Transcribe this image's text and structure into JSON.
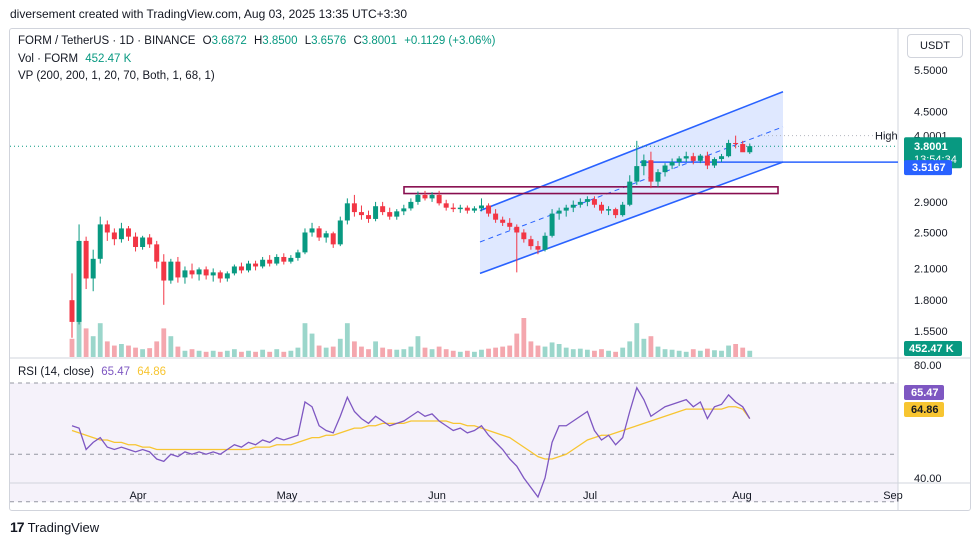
{
  "caption": "diversement created with TradingView.com, Aug 03, 2025 13:35 UTC+3:30",
  "legend": {
    "symbol": "FORM / TetherUS · 1D · BINANCE",
    "o_label": "O",
    "o": "3.6872",
    "h_label": "H",
    "h": "3.8500",
    "l_label": "L",
    "l": "3.6576",
    "c_label": "C",
    "c": "3.8001",
    "change": "+0.1129 (+3.06%)",
    "vol_label": "Vol · FORM",
    "vol_value": "452.47 K",
    "vp": "VP (200, 200, 1, 20, 70, Both, 1, 68, 1)",
    "rsi_label": "RSI (14, close)",
    "rsi_value": "65.47",
    "rsi_ma_value": "64.86"
  },
  "currency": "USDT",
  "footer": {
    "logo_mark": "17",
    "logo_text": "TradingView"
  },
  "colors": {
    "up": "#089981",
    "down": "#f23645",
    "vol_up": "#9bd6cb",
    "vol_down": "#f4a7ae",
    "channel": "#2962ff",
    "rsi": "#7e57c2",
    "rsi_ma": "#f7c531",
    "zone": "#880e4f"
  },
  "chart_data": {
    "type": "candlestick",
    "price_axis": {
      "ticks": [
        "5.5000",
        "4.5000",
        "4.0001",
        "3.8001",
        "3.5167",
        "2.9000",
        "2.5000",
        "2.1000",
        "1.8000",
        "1.5500"
      ],
      "scale": "log"
    },
    "price_labels": {
      "high_label": "High",
      "high": "4.0001",
      "last": "3.8001",
      "countdown": "13:54:34",
      "level": "3.5167",
      "volume": "452.47 K"
    },
    "x_labels": [
      "Apr",
      "May",
      "Jun",
      "Jul",
      "Aug",
      "Sep"
    ],
    "rsi_axis": [
      "80.00",
      "40.00"
    ],
    "rsi_labels": {
      "rsi": "65.47",
      "ma": "64.86"
    },
    "candles": [
      [
        1.8,
        2.05,
        1.5,
        1.62
      ],
      [
        1.62,
        2.6,
        1.6,
        2.4
      ],
      [
        2.4,
        2.45,
        1.9,
        2.0
      ],
      [
        2.0,
        2.3,
        1.88,
        2.2
      ],
      [
        2.2,
        2.7,
        2.15,
        2.6
      ],
      [
        2.6,
        2.65,
        2.4,
        2.5
      ],
      [
        2.5,
        2.55,
        2.35,
        2.42
      ],
      [
        2.42,
        2.62,
        2.38,
        2.55
      ],
      [
        2.55,
        2.58,
        2.4,
        2.45
      ],
      [
        2.45,
        2.5,
        2.28,
        2.33
      ],
      [
        2.33,
        2.46,
        2.3,
        2.44
      ],
      [
        2.44,
        2.48,
        2.32,
        2.36
      ],
      [
        2.36,
        2.4,
        2.1,
        2.17
      ],
      [
        2.17,
        2.25,
        1.76,
        1.98
      ],
      [
        1.98,
        2.2,
        1.95,
        2.17
      ],
      [
        2.17,
        2.22,
        1.96,
        2.01
      ],
      [
        2.01,
        2.12,
        1.95,
        2.08
      ],
      [
        2.08,
        2.15,
        2.0,
        2.04
      ],
      [
        2.04,
        2.11,
        1.98,
        2.09
      ],
      [
        2.09,
        2.12,
        1.99,
        2.03
      ],
      [
        2.03,
        2.1,
        1.97,
        2.06
      ],
      [
        2.06,
        2.08,
        1.96,
        2.0
      ],
      [
        2.0,
        2.07,
        1.97,
        2.05
      ],
      [
        2.05,
        2.14,
        2.03,
        2.12
      ],
      [
        2.12,
        2.16,
        2.05,
        2.08
      ],
      [
        2.08,
        2.18,
        2.06,
        2.15
      ],
      [
        2.15,
        2.18,
        2.08,
        2.12
      ],
      [
        2.12,
        2.22,
        2.1,
        2.19
      ],
      [
        2.19,
        2.24,
        2.12,
        2.15
      ],
      [
        2.15,
        2.25,
        2.13,
        2.22
      ],
      [
        2.22,
        2.26,
        2.14,
        2.17
      ],
      [
        2.17,
        2.24,
        2.15,
        2.21
      ],
      [
        2.21,
        2.3,
        2.18,
        2.27
      ],
      [
        2.27,
        2.55,
        2.25,
        2.5
      ],
      [
        2.5,
        2.62,
        2.45,
        2.55
      ],
      [
        2.55,
        2.58,
        2.4,
        2.44
      ],
      [
        2.44,
        2.52,
        2.38,
        2.49
      ],
      [
        2.49,
        2.51,
        2.32,
        2.36
      ],
      [
        2.36,
        2.7,
        2.34,
        2.65
      ],
      [
        2.65,
        2.95,
        2.6,
        2.88
      ],
      [
        2.88,
        3.0,
        2.7,
        2.76
      ],
      [
        2.76,
        2.85,
        2.66,
        2.72
      ],
      [
        2.72,
        2.78,
        2.62,
        2.67
      ],
      [
        2.67,
        2.9,
        2.64,
        2.84
      ],
      [
        2.84,
        2.9,
        2.72,
        2.76
      ],
      [
        2.76,
        2.82,
        2.66,
        2.7
      ],
      [
        2.7,
        2.8,
        2.66,
        2.77
      ],
      [
        2.77,
        2.86,
        2.72,
        2.81
      ],
      [
        2.81,
        2.95,
        2.78,
        2.9
      ],
      [
        2.9,
        3.05,
        2.86,
        3.0
      ],
      [
        3.0,
        3.06,
        2.92,
        2.95
      ],
      [
        2.95,
        3.04,
        2.9,
        3.0
      ],
      [
        3.0,
        3.06,
        2.85,
        2.88
      ],
      [
        2.88,
        2.93,
        2.78,
        2.82
      ],
      [
        2.82,
        2.88,
        2.76,
        2.8
      ],
      [
        2.8,
        2.86,
        2.75,
        2.82
      ],
      [
        2.82,
        2.85,
        2.74,
        2.78
      ],
      [
        2.78,
        2.84,
        2.75,
        2.81
      ],
      [
        2.81,
        2.95,
        2.77,
        2.85
      ],
      [
        2.85,
        2.88,
        2.7,
        2.74
      ],
      [
        2.74,
        2.8,
        2.62,
        2.66
      ],
      [
        2.66,
        2.7,
        2.58,
        2.62
      ],
      [
        2.62,
        2.68,
        2.53,
        2.57
      ],
      [
        2.57,
        2.6,
        2.06,
        2.5
      ],
      [
        2.5,
        2.54,
        2.38,
        2.42
      ],
      [
        2.42,
        2.46,
        2.3,
        2.34
      ],
      [
        2.34,
        2.4,
        2.25,
        2.3
      ],
      [
        2.3,
        2.5,
        2.28,
        2.46
      ],
      [
        2.46,
        2.8,
        2.44,
        2.74
      ],
      [
        2.74,
        2.82,
        2.66,
        2.78
      ],
      [
        2.78,
        2.86,
        2.7,
        2.82
      ],
      [
        2.82,
        2.92,
        2.76,
        2.86
      ],
      [
        2.86,
        2.95,
        2.82,
        2.9
      ],
      [
        2.9,
        2.98,
        2.84,
        2.94
      ],
      [
        2.94,
        2.98,
        2.82,
        2.86
      ],
      [
        2.86,
        2.9,
        2.74,
        2.78
      ],
      [
        2.78,
        2.84,
        2.72,
        2.8
      ],
      [
        2.8,
        2.82,
        2.68,
        2.72
      ],
      [
        2.72,
        2.9,
        2.7,
        2.86
      ],
      [
        2.86,
        3.3,
        2.84,
        3.2
      ],
      [
        3.2,
        3.9,
        3.15,
        3.45
      ],
      [
        3.45,
        3.65,
        3.3,
        3.55
      ],
      [
        3.55,
        3.7,
        3.1,
        3.2
      ],
      [
        3.2,
        3.4,
        3.12,
        3.35
      ],
      [
        3.35,
        3.5,
        3.28,
        3.46
      ],
      [
        3.46,
        3.58,
        3.4,
        3.52
      ],
      [
        3.52,
        3.62,
        3.45,
        3.58
      ],
      [
        3.58,
        3.7,
        3.52,
        3.62
      ],
      [
        3.62,
        3.68,
        3.48,
        3.54
      ],
      [
        3.54,
        3.66,
        3.5,
        3.63
      ],
      [
        3.63,
        3.7,
        3.4,
        3.46
      ],
      [
        3.46,
        3.6,
        3.42,
        3.57
      ],
      [
        3.57,
        3.66,
        3.52,
        3.62
      ],
      [
        3.62,
        3.92,
        3.6,
        3.86
      ],
      [
        3.86,
        4.0,
        3.76,
        3.84
      ],
      [
        3.84,
        3.9,
        3.7,
        3.69
      ],
      [
        3.69,
        3.85,
        3.66,
        3.8
      ]
    ],
    "volumes": [
      0.35,
      0.95,
      0.55,
      0.4,
      0.65,
      0.3,
      0.22,
      0.25,
      0.22,
      0.18,
      0.15,
      0.17,
      0.3,
      0.55,
      0.4,
      0.2,
      0.12,
      0.15,
      0.12,
      0.1,
      0.12,
      0.1,
      0.12,
      0.15,
      0.1,
      0.12,
      0.1,
      0.14,
      0.1,
      0.15,
      0.1,
      0.12,
      0.18,
      0.65,
      0.45,
      0.22,
      0.18,
      0.2,
      0.35,
      0.65,
      0.3,
      0.2,
      0.15,
      0.3,
      0.18,
      0.15,
      0.14,
      0.15,
      0.2,
      0.4,
      0.18,
      0.15,
      0.2,
      0.15,
      0.12,
      0.1,
      0.12,
      0.1,
      0.14,
      0.16,
      0.18,
      0.2,
      0.22,
      0.45,
      0.75,
      0.3,
      0.22,
      0.2,
      0.28,
      0.25,
      0.18,
      0.15,
      0.16,
      0.14,
      0.12,
      0.15,
      0.12,
      0.1,
      0.18,
      0.3,
      0.65,
      0.35,
      0.4,
      0.2,
      0.15,
      0.14,
      0.12,
      0.1,
      0.15,
      0.12,
      0.16,
      0.13,
      0.12,
      0.22,
      0.25,
      0.18,
      0.12
    ],
    "rsi": [
      62,
      61,
      52,
      55,
      57,
      53,
      52,
      53,
      52,
      51,
      52,
      51,
      48,
      47,
      50,
      49,
      51,
      50,
      51,
      50,
      51,
      50,
      52,
      54,
      53,
      55,
      54,
      56,
      55,
      57,
      56,
      57,
      58,
      72,
      70,
      62,
      60,
      59,
      66,
      74,
      68,
      65,
      63,
      66,
      64,
      62,
      63,
      64,
      66,
      68,
      66,
      67,
      64,
      62,
      60,
      61,
      59,
      60,
      62,
      58,
      55,
      52,
      48,
      45,
      40,
      36,
      32,
      40,
      55,
      62,
      62,
      64,
      66,
      68,
      60,
      56,
      58,
      54,
      57,
      68,
      78,
      73,
      66,
      68,
      70,
      71,
      72,
      73,
      70,
      72,
      65,
      70,
      71,
      75,
      72,
      70,
      65
    ],
    "rsi_ma": [
      60,
      59,
      58,
      57,
      56,
      56,
      55,
      55,
      54,
      54,
      53,
      53,
      52,
      52,
      52,
      52,
      52,
      52,
      52,
      52,
      52,
      52,
      52,
      52,
      52,
      52,
      53,
      53,
      53,
      54,
      54,
      54,
      55,
      56,
      57,
      57,
      58,
      58,
      59,
      60,
      61,
      61,
      62,
      62,
      63,
      63,
      63,
      63,
      64,
      64,
      64,
      64,
      64,
      64,
      63,
      63,
      62,
      62,
      61,
      60,
      59,
      58,
      57,
      55,
      53,
      51,
      49,
      48,
      48,
      49,
      50,
      52,
      54,
      56,
      57,
      58,
      58,
      59,
      60,
      61,
      62,
      63,
      64,
      65,
      66,
      67,
      68,
      69,
      69,
      69,
      69,
      69,
      69,
      70,
      70,
      69,
      65
    ]
  }
}
